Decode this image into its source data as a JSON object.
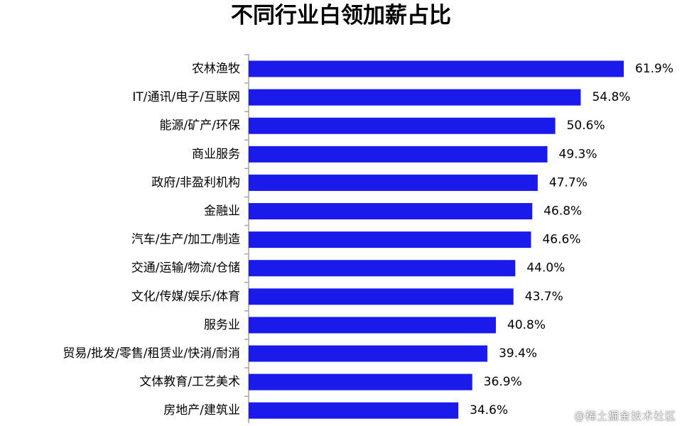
{
  "watermark": "@稀土掘金技术社区",
  "colors": {
    "bar": "#1a1aea",
    "axis": "#a6a6a6",
    "text": "#000000"
  },
  "chart_data": {
    "type": "bar",
    "orientation": "horizontal",
    "title": "不同行业白领加薪占比",
    "xlabel": "",
    "ylabel": "",
    "xlim": [
      0,
      61.9
    ],
    "grid": false,
    "legend": "none",
    "value_suffix": "%",
    "categories": [
      "农林渔牧",
      "IT/通讯/电子/互联网",
      "能源/矿产/环保",
      "商业服务",
      "政府/非盈利机构",
      "金融业",
      "汽车/生产/加工/制造",
      "交通/运输/物流/仓储",
      "文化/传媒/娱乐/体育",
      "服务业",
      "贸易/批发/零售/租赁业/快消/耐消",
      "文体教育/工艺美术",
      "房地产/建筑业"
    ],
    "values": [
      61.9,
      54.8,
      50.6,
      49.3,
      47.7,
      46.8,
      46.6,
      44.0,
      43.7,
      40.8,
      39.4,
      36.9,
      34.6
    ],
    "value_labels": [
      "61.9%",
      "54.8%",
      "50.6%",
      "49.3%",
      "47.7%",
      "46.8%",
      "46.6%",
      "44.0%",
      "43.7%",
      "40.8%",
      "39.4%",
      "36.9%",
      "34.6%"
    ]
  }
}
